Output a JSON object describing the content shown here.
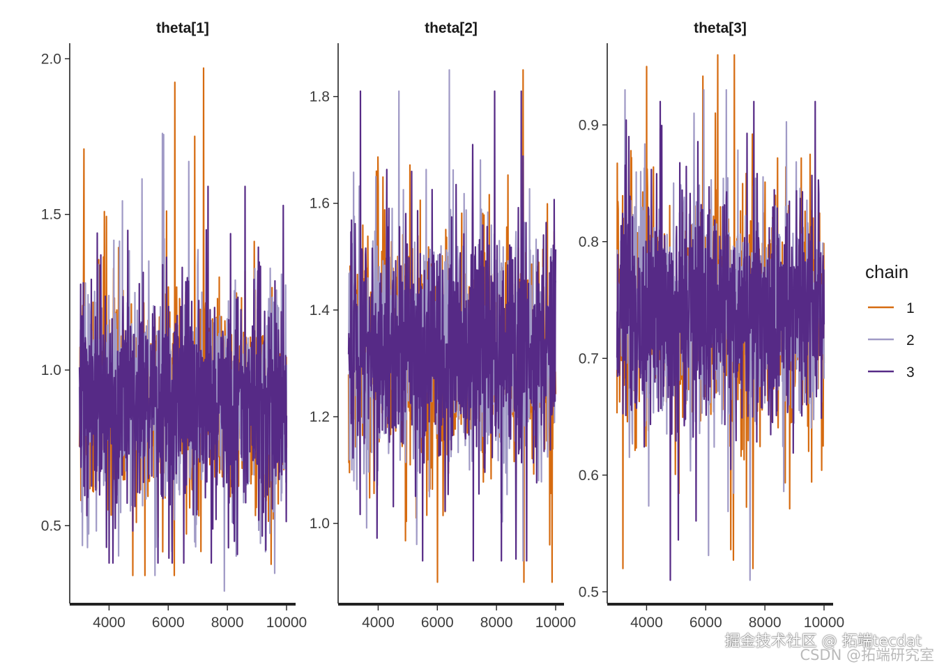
{
  "chart_data": {
    "type": "line",
    "kind": "mcmc-traceplot",
    "x": {
      "start": 3000,
      "end": 10000
    },
    "legend": {
      "title": "chain",
      "position": "right",
      "entries": [
        "1",
        "2",
        "3"
      ]
    },
    "series_colors": {
      "1": "#d66b10",
      "2": "#a09ac6",
      "3": "#562a86"
    },
    "panels": [
      {
        "title": "theta[1]",
        "xticks": [
          4000,
          6000,
          8000,
          10000
        ],
        "xtick_labels": [
          "4000",
          "6000",
          "8000",
          "10000"
        ],
        "ylim": [
          0.25,
          2.05
        ],
        "yticks": [
          0.5,
          1.0,
          1.5,
          2.0
        ],
        "ytick_labels": [
          "0.5",
          "1.0",
          "1.5",
          "2.0"
        ],
        "center": 0.9,
        "spread": 0.17,
        "chains": [
          {
            "name": "1",
            "min": 0.34,
            "max": 1.97,
            "spikes": [
              [
                7200,
                1.97
              ],
              [
                3150,
                1.71
              ],
              [
                4800,
                0.34
              ]
            ]
          },
          {
            "name": "2",
            "min": 0.29,
            "max": 1.76,
            "spikes": [
              [
                5800,
                1.76
              ],
              [
                6700,
                1.67
              ],
              [
                7900,
                0.29
              ]
            ]
          },
          {
            "name": "3",
            "min": 0.38,
            "max": 1.59,
            "spikes": [
              [
                8600,
                1.59
              ],
              [
                3600,
                1.44
              ],
              [
                4000,
                0.38
              ]
            ]
          }
        ]
      },
      {
        "title": "theta[2]",
        "xticks": [
          4000,
          6000,
          8000,
          10000
        ],
        "xtick_labels": [
          "4000",
          "6000",
          "8000",
          "10000"
        ],
        "ylim": [
          0.85,
          1.9
        ],
        "yticks": [
          1.0,
          1.2,
          1.4,
          1.6,
          1.8
        ],
        "ytick_labels": [
          "1.0",
          "1.2",
          "1.4",
          "1.6",
          "1.8"
        ],
        "center": 1.33,
        "spread": 0.11,
        "chains": [
          {
            "name": "1",
            "min": 0.89,
            "max": 1.85,
            "spikes": [
              [
                8900,
                1.85
              ],
              [
                6000,
                0.89
              ],
              [
                9800,
                0.96
              ]
            ]
          },
          {
            "name": "2",
            "min": 0.93,
            "max": 1.85,
            "spikes": [
              [
                6400,
                1.85
              ],
              [
                4700,
                1.81
              ],
              [
                8900,
                0.93
              ]
            ]
          },
          {
            "name": "3",
            "min": 0.93,
            "max": 1.81,
            "spikes": [
              [
                3400,
                1.81
              ],
              [
                5500,
                0.93
              ],
              [
                7200,
                1.71
              ]
            ]
          }
        ]
      },
      {
        "title": "theta[3]",
        "xticks": [
          4000,
          6000,
          8000,
          10000
        ],
        "xtick_labels": [
          "4000",
          "6000",
          "8000",
          "10000"
        ],
        "ylim": [
          0.49,
          0.97
        ],
        "yticks": [
          0.5,
          0.6,
          0.7,
          0.8,
          0.9
        ],
        "ytick_labels": [
          "0.5",
          "0.6",
          "0.7",
          "0.8",
          "0.9"
        ],
        "center": 0.74,
        "spread": 0.05,
        "chains": [
          {
            "name": "1",
            "min": 0.52,
            "max": 0.96,
            "spikes": [
              [
                6400,
                0.96
              ],
              [
                4000,
                0.95
              ],
              [
                3200,
                0.52
              ]
            ]
          },
          {
            "name": "2",
            "min": 0.51,
            "max": 0.93,
            "spikes": [
              [
                6700,
                0.93
              ],
              [
                7500,
                0.51
              ],
              [
                5600,
                0.91
              ]
            ]
          },
          {
            "name": "3",
            "min": 0.51,
            "max": 0.92,
            "spikes": [
              [
                4800,
                0.51
              ],
              [
                9700,
                0.92
              ],
              [
                3400,
                0.89
              ]
            ]
          }
        ]
      }
    ]
  },
  "watermark": {
    "line1": "掘金技术社区 @ 拓端tecdat",
    "line2": "CSDN @拓端研究室"
  }
}
